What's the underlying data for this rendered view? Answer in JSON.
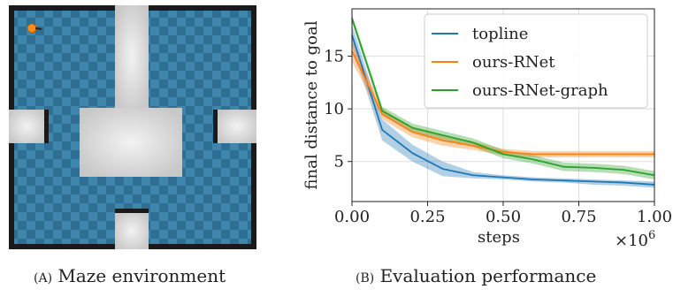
{
  "caption_a": {
    "letter": "(A)",
    "text": "Maze environment"
  },
  "caption_b": {
    "letter": "(B)",
    "text": "Evaluation performance"
  },
  "maze": {
    "floor_color": "#2f6f93",
    "floor_alt_color": "#3f86ad",
    "wall_color": "#d9d9d9",
    "border_color": "#1a1a1a",
    "agent_color": "#ff8c1a",
    "agent_icon": "orange-ball-agent"
  },
  "chart_data": {
    "type": "line",
    "xlabel": "steps",
    "ylabel": "final distance to goal",
    "x_multiplier": "×10",
    "x_multiplier_exp": "6",
    "xlim": [
      0,
      1.0
    ],
    "ylim": [
      1.2,
      19.5
    ],
    "xticks": [
      0.0,
      0.25,
      0.5,
      0.75,
      1.0
    ],
    "xtick_labels": [
      "0.00",
      "0.25",
      "0.50",
      "0.75",
      "1.00"
    ],
    "yticks": [
      5,
      10,
      15
    ],
    "ytick_labels": [
      "5",
      "10",
      "15"
    ],
    "grid": true,
    "legend_position": "top-right",
    "x": [
      0.0,
      0.1,
      0.2,
      0.3,
      0.4,
      0.5,
      0.6,
      0.7,
      0.8,
      0.9,
      1.0
    ],
    "series": [
      {
        "name": "topline",
        "color": "#1f77b4",
        "values": [
          17.0,
          8.0,
          5.8,
          4.3,
          3.7,
          3.5,
          3.3,
          3.2,
          3.1,
          3.0,
          2.8
        ],
        "lower": [
          16.0,
          7.0,
          5.0,
          3.6,
          3.4,
          3.3,
          3.1,
          3.0,
          2.8,
          2.7,
          2.5
        ],
        "upper": [
          18.0,
          9.0,
          6.6,
          5.0,
          4.0,
          3.7,
          3.5,
          3.4,
          3.3,
          3.2,
          3.1
        ]
      },
      {
        "name": "ours-RNet",
        "color": "#ff7f0e",
        "values": [
          15.5,
          9.5,
          7.8,
          7.0,
          6.5,
          5.9,
          5.7,
          5.7,
          5.7,
          5.7,
          5.7
        ],
        "lower": [
          14.5,
          9.0,
          7.3,
          6.5,
          6.1,
          5.6,
          5.4,
          5.4,
          5.4,
          5.4,
          5.4
        ],
        "upper": [
          16.5,
          10.0,
          8.3,
          7.5,
          6.9,
          6.2,
          6.0,
          6.0,
          6.0,
          6.0,
          6.0
        ]
      },
      {
        "name": "ours-RNet-graph",
        "color": "#2ca02c",
        "values": [
          18.6,
          9.8,
          8.2,
          7.5,
          6.8,
          5.7,
          5.2,
          4.5,
          4.4,
          4.2,
          3.7
        ],
        "lower": [
          18.2,
          9.4,
          7.8,
          7.1,
          6.4,
          5.3,
          4.8,
          4.1,
          4.0,
          3.8,
          3.3
        ],
        "upper": [
          19.0,
          10.2,
          8.6,
          7.9,
          7.2,
          6.1,
          5.6,
          4.9,
          4.8,
          4.6,
          4.1
        ]
      }
    ]
  }
}
